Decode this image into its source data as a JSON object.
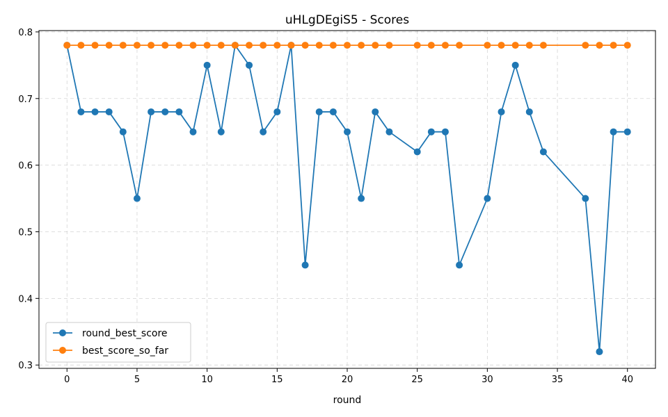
{
  "chart_data": {
    "type": "line",
    "title": "uHLgDEgiS5 - Scores",
    "xlabel": "round",
    "ylabel": "",
    "xlim": [
      -2,
      42
    ],
    "ylim": [
      0.295,
      0.802
    ],
    "xticks": [
      0,
      5,
      10,
      15,
      20,
      25,
      30,
      35,
      40
    ],
    "yticks": [
      0.3,
      0.4,
      0.5,
      0.6,
      0.7,
      0.8
    ],
    "grid": true,
    "legend_position": "lower-left",
    "series": [
      {
        "name": "round_best_score",
        "color": "#1f77b4",
        "x": [
          0,
          1,
          2,
          3,
          4,
          5,
          6,
          7,
          8,
          9,
          10,
          11,
          12,
          13,
          14,
          15,
          16,
          17,
          18,
          19,
          20,
          21,
          22,
          23,
          25,
          26,
          27,
          28,
          30,
          31,
          32,
          33,
          34,
          37,
          38,
          39,
          40
        ],
        "y": [
          0.78,
          0.68,
          0.68,
          0.68,
          0.65,
          0.55,
          0.68,
          0.68,
          0.68,
          0.65,
          0.75,
          0.65,
          0.78,
          0.75,
          0.65,
          0.68,
          0.78,
          0.45,
          0.68,
          0.68,
          0.65,
          0.55,
          0.68,
          0.65,
          0.62,
          0.65,
          0.65,
          0.45,
          0.55,
          0.68,
          0.75,
          0.68,
          0.62,
          0.55,
          0.32,
          0.65,
          0.65
        ]
      },
      {
        "name": "best_score_so_far",
        "color": "#ff7f0e",
        "x": [
          0,
          1,
          2,
          3,
          4,
          5,
          6,
          7,
          8,
          9,
          10,
          11,
          12,
          13,
          14,
          15,
          16,
          17,
          18,
          19,
          20,
          21,
          22,
          23,
          25,
          26,
          27,
          28,
          30,
          31,
          32,
          33,
          34,
          37,
          38,
          39,
          40
        ],
        "y": [
          0.78,
          0.78,
          0.78,
          0.78,
          0.78,
          0.78,
          0.78,
          0.78,
          0.78,
          0.78,
          0.78,
          0.78,
          0.78,
          0.78,
          0.78,
          0.78,
          0.78,
          0.78,
          0.78,
          0.78,
          0.78,
          0.78,
          0.78,
          0.78,
          0.78,
          0.78,
          0.78,
          0.78,
          0.78,
          0.78,
          0.78,
          0.78,
          0.78,
          0.78,
          0.78,
          0.78,
          0.78
        ]
      }
    ]
  }
}
